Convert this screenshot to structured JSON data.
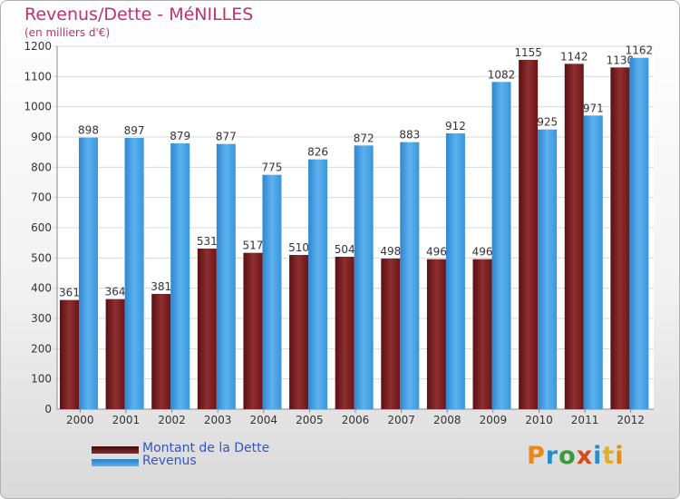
{
  "chart_data": {
    "type": "bar",
    "title": "Revenus/Dette - MéNILLES",
    "subtitle": "(en milliers d'€)",
    "categories": [
      "2000",
      "2001",
      "2002",
      "2003",
      "2004",
      "2005",
      "2006",
      "2007",
      "2008",
      "2009",
      "2010",
      "2011",
      "2012"
    ],
    "series": [
      {
        "name": "Montant de la Dette",
        "color": "#7a1f22",
        "values": [
          361,
          364,
          381,
          531,
          517,
          510,
          504,
          498,
          496,
          496,
          1155,
          1142,
          1130
        ]
      },
      {
        "name": "Revenus",
        "color": "#3f9ce0",
        "values": [
          898,
          897,
          879,
          877,
          775,
          826,
          872,
          883,
          912,
          1082,
          925,
          971,
          1162
        ]
      }
    ],
    "ylim": [
      0,
      1200
    ],
    "yticks": [
      0,
      100,
      200,
      300,
      400,
      500,
      600,
      700,
      800,
      900,
      1000,
      1100,
      1200
    ],
    "grid": true,
    "legend": "bottom-left"
  },
  "logo_text": "Proxiti"
}
